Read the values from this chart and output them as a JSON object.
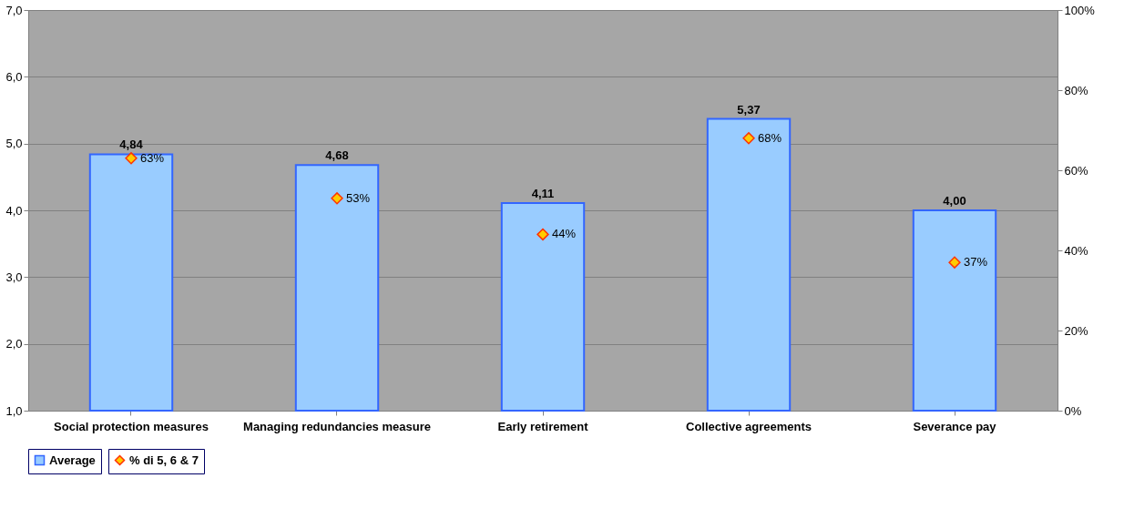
{
  "chart_data": {
    "type": "bar",
    "categories": [
      "Social protection measures",
      "Managing redundancies measure",
      "Early retirement",
      "Collective agreements",
      "Severance pay"
    ],
    "series": [
      {
        "name": "Average",
        "color": "#99ccff",
        "values": [
          4.84,
          4.68,
          4.11,
          5.37,
          4.0
        ],
        "value_labels": [
          "4,84",
          "4,68",
          "4,11",
          "5,37",
          "4,00"
        ]
      },
      {
        "name": "% di 5, 6 & 7",
        "type": "scatter",
        "axis": "y2",
        "color": "#ffcc00",
        "marker": "diamond",
        "values": [
          63,
          53,
          44,
          68,
          37
        ],
        "value_labels": [
          "63%",
          "53%",
          "44%",
          "68%",
          "37%"
        ]
      }
    ],
    "ylim": [
      1,
      7
    ],
    "yticks": [
      {
        "value": 1,
        "label": "1,0"
      },
      {
        "value": 2,
        "label": "2,0"
      },
      {
        "value": 3,
        "label": "3,0"
      },
      {
        "value": 4,
        "label": "4,0"
      },
      {
        "value": 5,
        "label": "5,0"
      },
      {
        "value": 6,
        "label": "6,0"
      },
      {
        "value": 7,
        "label": "7,0"
      }
    ],
    "y2lim": [
      0,
      100
    ],
    "y2ticks": [
      {
        "value": 0,
        "label": "0%"
      },
      {
        "value": 20,
        "label": "20%"
      },
      {
        "value": 40,
        "label": "40%"
      },
      {
        "value": 60,
        "label": "60%"
      },
      {
        "value": 80,
        "label": "80%"
      },
      {
        "value": 100,
        "label": "100%"
      }
    ],
    "grid": "y",
    "legend": "bottom"
  }
}
